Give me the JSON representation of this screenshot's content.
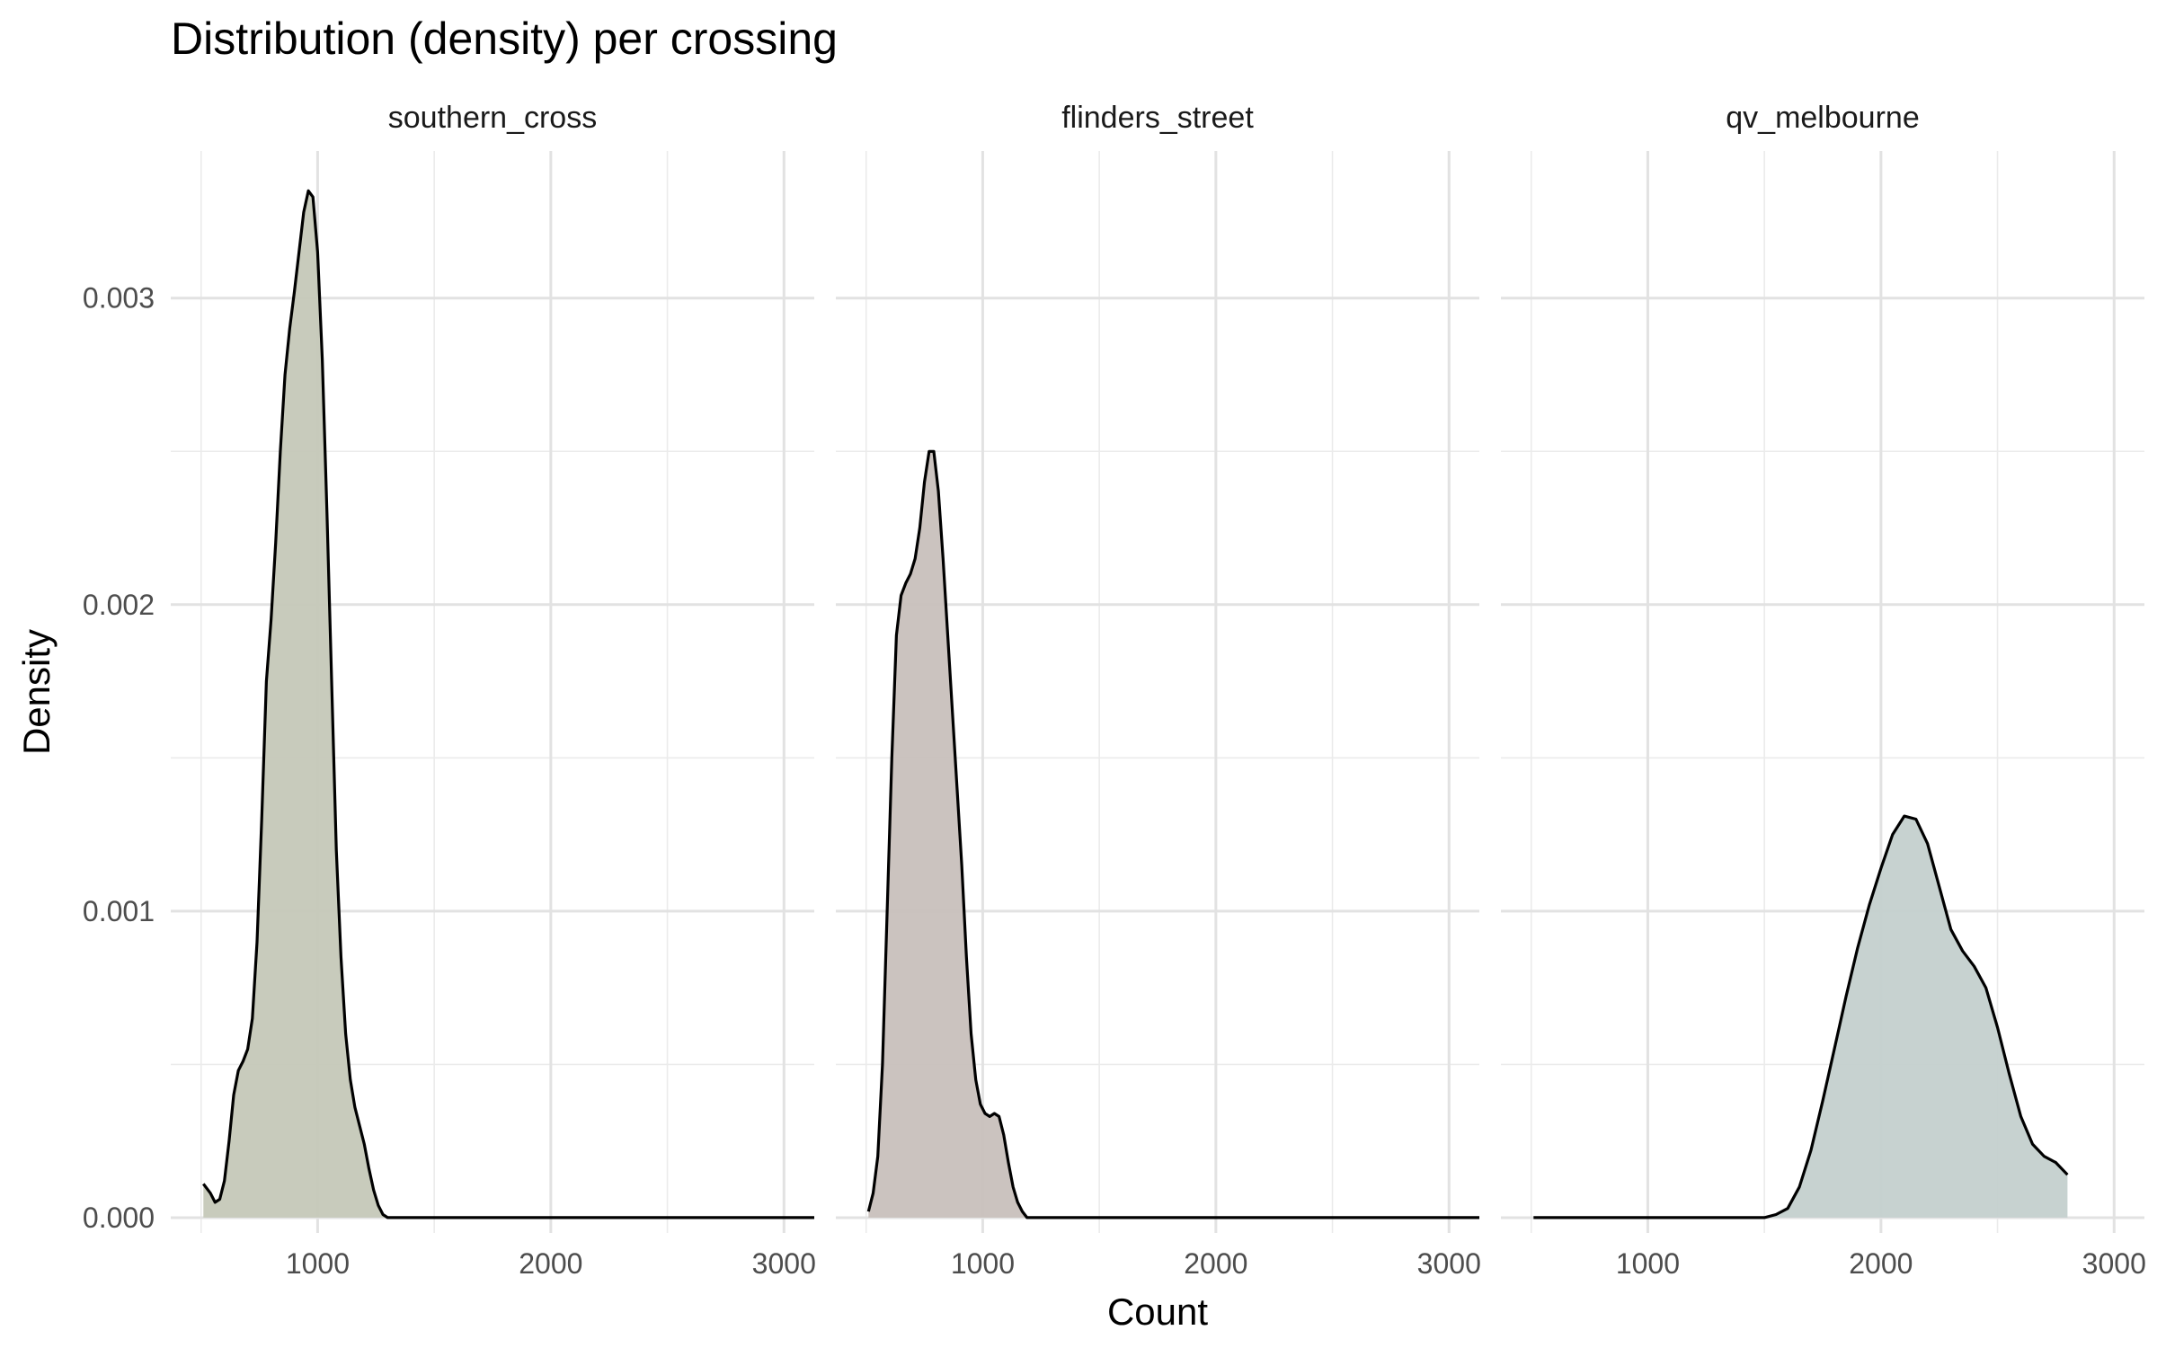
{
  "chart_data": {
    "type": "area",
    "title": "Distribution (density) per crossing",
    "xlabel": "Count",
    "ylabel": "Density",
    "xlim": [
      370,
      3130
    ],
    "ylim": [
      -5e-05,
      0.00348
    ],
    "x_ticks": [
      1000,
      2000,
      3000
    ],
    "x_tick_labels": [
      "1000",
      "2000",
      "3000"
    ],
    "y_ticks": [
      0,
      0.001,
      0.002,
      0.003
    ],
    "y_tick_labels": [
      "0.000",
      "0.001",
      "0.002",
      "0.003"
    ],
    "grid": true,
    "legend": "none",
    "facets": [
      {
        "name": "southern_cross",
        "fill": "#c5c8b8",
        "points": [
          [
            510,
            0.00011
          ],
          [
            540,
            8e-05
          ],
          [
            560,
            5e-05
          ],
          [
            580,
            6e-05
          ],
          [
            600,
            0.00012
          ],
          [
            620,
            0.00025
          ],
          [
            640,
            0.0004
          ],
          [
            660,
            0.00048
          ],
          [
            680,
            0.00051
          ],
          [
            700,
            0.00055
          ],
          [
            720,
            0.00065
          ],
          [
            740,
            0.0009
          ],
          [
            760,
            0.0013
          ],
          [
            780,
            0.00175
          ],
          [
            800,
            0.00195
          ],
          [
            820,
            0.0022
          ],
          [
            840,
            0.0025
          ],
          [
            860,
            0.00275
          ],
          [
            880,
            0.0029
          ],
          [
            900,
            0.00302
          ],
          [
            920,
            0.00315
          ],
          [
            940,
            0.00328
          ],
          [
            960,
            0.00335
          ],
          [
            980,
            0.00333
          ],
          [
            1000,
            0.00315
          ],
          [
            1020,
            0.0028
          ],
          [
            1040,
            0.0023
          ],
          [
            1060,
            0.00175
          ],
          [
            1080,
            0.0012
          ],
          [
            1100,
            0.00085
          ],
          [
            1120,
            0.0006
          ],
          [
            1140,
            0.00045
          ],
          [
            1160,
            0.00036
          ],
          [
            1180,
            0.0003
          ],
          [
            1200,
            0.00024
          ],
          [
            1220,
            0.00016
          ],
          [
            1240,
            9e-05
          ],
          [
            1260,
            4e-05
          ],
          [
            1280,
            1e-05
          ],
          [
            1300,
            0.0
          ],
          [
            1400,
            0.0
          ],
          [
            1800,
            0.0
          ],
          [
            2200,
            0.0
          ],
          [
            2600,
            0.0
          ],
          [
            3000,
            0.0
          ],
          [
            3130,
            0.0
          ]
        ]
      },
      {
        "name": "flinders_street",
        "fill": "#c8c0bc",
        "points": [
          [
            510,
            2e-05
          ],
          [
            530,
            8e-05
          ],
          [
            550,
            0.0002
          ],
          [
            570,
            0.0005
          ],
          [
            590,
            0.001
          ],
          [
            610,
            0.0015
          ],
          [
            630,
            0.0019
          ],
          [
            650,
            0.00203
          ],
          [
            670,
            0.00207
          ],
          [
            690,
            0.0021
          ],
          [
            710,
            0.00215
          ],
          [
            730,
            0.00225
          ],
          [
            750,
            0.0024
          ],
          [
            770,
            0.0025
          ],
          [
            790,
            0.0025
          ],
          [
            810,
            0.00237
          ],
          [
            830,
            0.00215
          ],
          [
            850,
            0.0019
          ],
          [
            870,
            0.00165
          ],
          [
            890,
            0.0014
          ],
          [
            910,
            0.00115
          ],
          [
            930,
            0.00085
          ],
          [
            950,
            0.0006
          ],
          [
            970,
            0.00045
          ],
          [
            990,
            0.00037
          ],
          [
            1010,
            0.00034
          ],
          [
            1030,
            0.00033
          ],
          [
            1050,
            0.00034
          ],
          [
            1070,
            0.00033
          ],
          [
            1090,
            0.00027
          ],
          [
            1110,
            0.00018
          ],
          [
            1130,
            0.0001
          ],
          [
            1150,
            5e-05
          ],
          [
            1170,
            2e-05
          ],
          [
            1190,
            0.0
          ],
          [
            1400,
            0.0
          ],
          [
            1800,
            0.0
          ],
          [
            2200,
            0.0
          ],
          [
            2600,
            0.0
          ],
          [
            3000,
            0.0
          ],
          [
            3130,
            0.0
          ]
        ]
      },
      {
        "name": "qv_melbourne",
        "fill": "#c4d0ce",
        "points": [
          [
            510,
            0.0
          ],
          [
            900,
            0.0
          ],
          [
            1300,
            0.0
          ],
          [
            1400,
            0.0
          ],
          [
            1500,
            0.0
          ],
          [
            1550,
            1e-05
          ],
          [
            1600,
            3e-05
          ],
          [
            1650,
            0.0001
          ],
          [
            1700,
            0.00022
          ],
          [
            1750,
            0.00038
          ],
          [
            1800,
            0.00055
          ],
          [
            1850,
            0.00072
          ],
          [
            1900,
            0.00088
          ],
          [
            1950,
            0.00102
          ],
          [
            2000,
            0.00114
          ],
          [
            2050,
            0.00125
          ],
          [
            2100,
            0.00131
          ],
          [
            2150,
            0.0013
          ],
          [
            2200,
            0.00122
          ],
          [
            2250,
            0.00108
          ],
          [
            2300,
            0.00094
          ],
          [
            2350,
            0.00087
          ],
          [
            2400,
            0.00082
          ],
          [
            2450,
            0.00075
          ],
          [
            2500,
            0.00062
          ],
          [
            2550,
            0.00047
          ],
          [
            2600,
            0.00033
          ],
          [
            2650,
            0.00024
          ],
          [
            2700,
            0.0002
          ],
          [
            2750,
            0.00018
          ],
          [
            2800,
            0.00014
          ]
        ]
      }
    ]
  }
}
